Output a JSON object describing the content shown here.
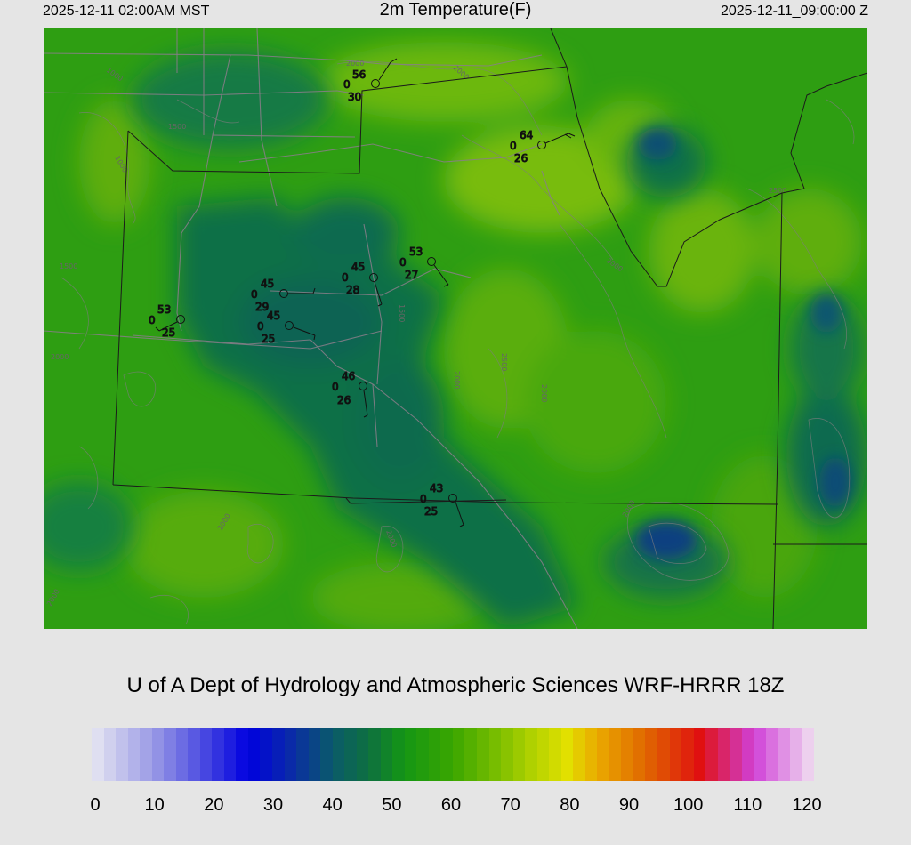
{
  "header": {
    "local_time": "2025-12-11 02:00AM MST",
    "title": "2m Temperature(F)",
    "utc_time": "2025-12-11_09:00:00 Z"
  },
  "credit": "U of A Dept of Hydrology and Atmospheric Sciences WRF-HRRR 18Z",
  "colorbar": {
    "min": 0,
    "max": 120,
    "tick_labels": [
      "0",
      "10",
      "20",
      "30",
      "40",
      "50",
      "60",
      "70",
      "80",
      "90",
      "100",
      "110",
      "120"
    ],
    "stops": [
      {
        "value": 0,
        "color": "#e6e6f2"
      },
      {
        "value": 10,
        "color": "#9b9be6"
      },
      {
        "value": 20,
        "color": "#3c3ce0"
      },
      {
        "value": 26,
        "color": "#0000e0"
      },
      {
        "value": 33,
        "color": "#0a2aa8"
      },
      {
        "value": 40,
        "color": "#0a5a6a"
      },
      {
        "value": 46,
        "color": "#0e7040"
      },
      {
        "value": 52,
        "color": "#149614"
      },
      {
        "value": 60,
        "color": "#3aa600"
      },
      {
        "value": 68,
        "color": "#80c000"
      },
      {
        "value": 74,
        "color": "#b8d400"
      },
      {
        "value": 79,
        "color": "#e2e000"
      },
      {
        "value": 84,
        "color": "#eaaa00"
      },
      {
        "value": 92,
        "color": "#e06800"
      },
      {
        "value": 101,
        "color": "#e01010"
      },
      {
        "value": 110,
        "color": "#d040d8"
      },
      {
        "value": 120,
        "color": "#f0e0f0"
      }
    ]
  },
  "contour_labels": [
    "1000",
    "1500",
    "2000",
    "2500"
  ],
  "stations": [
    {
      "id": "stn-1",
      "temp": "56",
      "cloud": "0",
      "dew": "30"
    },
    {
      "id": "stn-2",
      "temp": "64",
      "cloud": "0",
      "dew": "26"
    },
    {
      "id": "stn-3",
      "temp": "53",
      "cloud": "0",
      "dew": "27"
    },
    {
      "id": "stn-4",
      "temp": "45",
      "cloud": "0",
      "dew": "28"
    },
    {
      "id": "stn-5",
      "temp": "45",
      "cloud": "0",
      "dew": "29"
    },
    {
      "id": "stn-6",
      "temp": "45",
      "cloud": "0",
      "dew": "25"
    },
    {
      "id": "stn-7",
      "temp": "53",
      "cloud": "0",
      "dew": "25"
    },
    {
      "id": "stn-8",
      "temp": "46",
      "cloud": "0",
      "dew": "26"
    },
    {
      "id": "stn-9",
      "temp": "43",
      "cloud": "0",
      "dew": "25"
    }
  ]
}
